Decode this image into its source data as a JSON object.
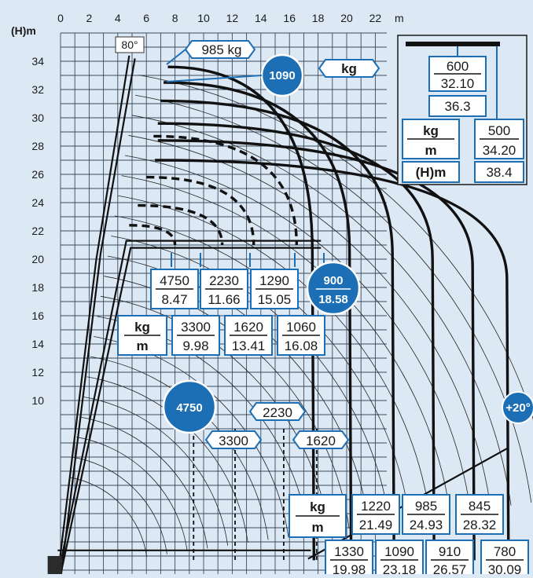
{
  "axis": {
    "y_title": "(H)m",
    "x_unit": "m",
    "x_ticks": [
      "0",
      "2",
      "4",
      "6",
      "8",
      "10",
      "12",
      "14",
      "16",
      "18",
      "20",
      "22"
    ],
    "y_ticks": [
      "34",
      "32",
      "30",
      "28",
      "26",
      "24",
      "22",
      "20",
      "18",
      "16",
      "14",
      "12",
      "10"
    ]
  },
  "angle_labels": {
    "max": "80°",
    "min": "+20°"
  },
  "top": {
    "tip_load": "985 kg",
    "circle": "1090",
    "unit": "kg"
  },
  "legend": {
    "kg": "kg",
    "m": "m",
    "hm": "(H)m",
    "c1_load": "600",
    "c1_reach": "32.10",
    "c1_height": "36.3",
    "c2_load": "500",
    "c2_reach": "34.20",
    "c2_height": "38.4"
  },
  "mid_boxes": [
    {
      "load": "4750",
      "reach": "8.47"
    },
    {
      "load": "2230",
      "reach": "11.66"
    },
    {
      "load": "1290",
      "reach": "15.05"
    },
    {
      "load": "900",
      "reach": "18.58"
    },
    {
      "load": "3300",
      "reach": "9.98"
    },
    {
      "load": "1620",
      "reach": "13.41"
    },
    {
      "load": "1060",
      "reach": "16.08"
    }
  ],
  "mid_unit": {
    "kg": "kg",
    "m": "m"
  },
  "low_labels": {
    "circle": "4750",
    "a": "2230",
    "b": "3300",
    "c": "1620"
  },
  "bottom_unit": {
    "kg": "kg",
    "m": "m"
  },
  "bottom_row1": [
    {
      "load": "1220",
      "reach": "21.49"
    },
    {
      "load": "985",
      "reach": "24.93"
    },
    {
      "load": "845",
      "reach": "28.32"
    }
  ],
  "bottom_row2": [
    {
      "load": "1330",
      "reach": "19.98"
    },
    {
      "load": "1090",
      "reach": "23.18"
    },
    {
      "load": "910",
      "reach": "26.57"
    },
    {
      "load": "780",
      "reach": "30.09"
    }
  ],
  "colors": {
    "accent": "#1c6fb5",
    "background": "#dde8f5",
    "ink": "#111111"
  }
}
